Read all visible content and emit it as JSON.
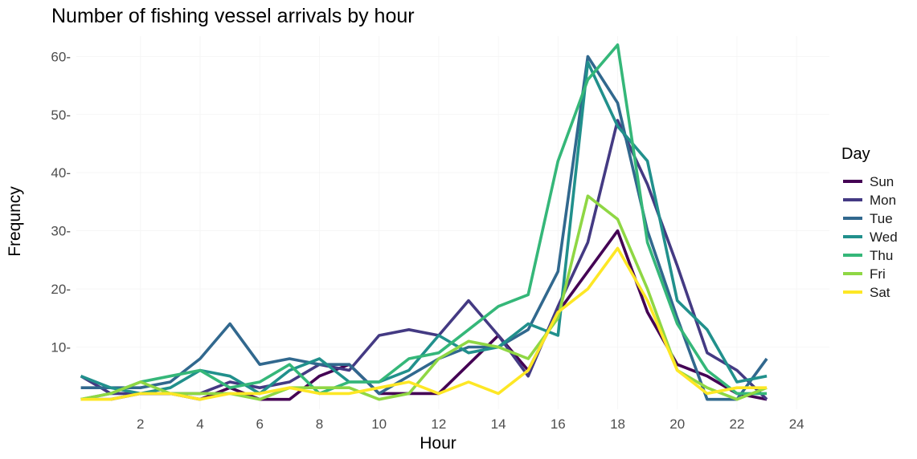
{
  "chart_data": {
    "type": "line",
    "title": "Number of fishing vessel arrivals by hour",
    "xlabel": "Hour",
    "ylabel": "Frequncy",
    "xlim": [
      -0.15,
      25.1
    ],
    "ylim": [
      -0.7,
      63.5
    ],
    "xticks": [
      2,
      4,
      6,
      8,
      10,
      12,
      14,
      16,
      18,
      20,
      22,
      24
    ],
    "yticks": [
      10,
      20,
      30,
      40,
      50,
      60
    ],
    "grid": false,
    "legend": {
      "title": "Day",
      "placement": "right"
    },
    "x": [
      0,
      1,
      2,
      3,
      4,
      5,
      6,
      7,
      8,
      9,
      10,
      11,
      12,
      13,
      14,
      15,
      16,
      17,
      18,
      19,
      20,
      21,
      22,
      23
    ],
    "series": [
      {
        "name": "Sun",
        "color": "#440154",
        "values": [
          1,
          1,
          2,
          2,
          1,
          3,
          1,
          1,
          5,
          7,
          2,
          2,
          2,
          7,
          12,
          6,
          16,
          23,
          30,
          16,
          7,
          5,
          2,
          1
        ]
      },
      {
        "name": "Mon",
        "color": "#443A83",
        "values": [
          5,
          2,
          2,
          2,
          2,
          4,
          3,
          4,
          7,
          6,
          12,
          13,
          12,
          18,
          12,
          5,
          17,
          28,
          49,
          38,
          24,
          9,
          6,
          1
        ]
      },
      {
        "name": "Tue",
        "color": "#31688E",
        "values": [
          3,
          3,
          3,
          4,
          8,
          14,
          7,
          8,
          7,
          7,
          2,
          5,
          8,
          10,
          10,
          13,
          23,
          60,
          52,
          30,
          15,
          1,
          1,
          8
        ]
      },
      {
        "name": "Wed",
        "color": "#21908C",
        "values": [
          5,
          3,
          2,
          3,
          6,
          5,
          2,
          6,
          8,
          4,
          4,
          6,
          12,
          9,
          10,
          14,
          12,
          59,
          48,
          42,
          18,
          13,
          4,
          5
        ]
      },
      {
        "name": "Thu",
        "color": "#35B779",
        "values": [
          1,
          2,
          4,
          5,
          6,
          3,
          4,
          7,
          2,
          4,
          4,
          8,
          9,
          13,
          17,
          19,
          42,
          56,
          62,
          28,
          14,
          6,
          2,
          2
        ]
      },
      {
        "name": "Fri",
        "color": "#8FD744",
        "values": [
          1,
          2,
          4,
          2,
          2,
          2,
          1,
          3,
          3,
          3,
          1,
          2,
          8,
          11,
          10,
          8,
          15,
          36,
          32,
          20,
          6,
          3,
          1,
          3
        ]
      },
      {
        "name": "Sat",
        "color": "#FDE725",
        "values": [
          1,
          1,
          2,
          2,
          1,
          2,
          2,
          3,
          2,
          2,
          3,
          4,
          2,
          4,
          2,
          6,
          16,
          20,
          27,
          18,
          6,
          2,
          3,
          3
        ]
      }
    ]
  }
}
